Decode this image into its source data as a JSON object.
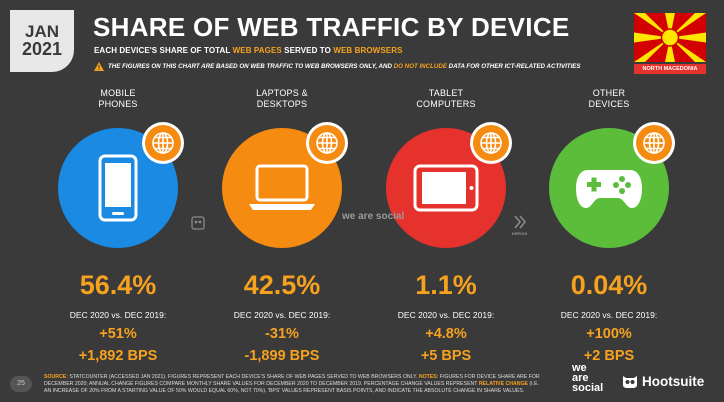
{
  "header": {
    "month": "JAN",
    "year": "2021",
    "title": "SHARE OF WEB TRAFFIC BY DEVICE",
    "subtitle_pre": "EACH DEVICE'S SHARE OF TOTAL ",
    "subtitle_hl1": "WEB PAGES",
    "subtitle_mid": " SERVED TO ",
    "subtitle_hl2": "WEB BROWSERS",
    "warning_pre": "THE FIGURES ON THIS CHART ARE BASED ON WEB TRAFFIC TO WEB BROWSERS ONLY, AND ",
    "warning_hl": "DO NOT INCLUDE",
    "warning_post": " DATA FOR OTHER ICT-RELATED ACTIVITIES",
    "country": "NORTH MACEDONIA"
  },
  "colors": {
    "accent": "#f6a21e",
    "mobile": "#1a8ae3",
    "laptop": "#f58b11",
    "tablet": "#e5322d",
    "other": "#5bbd3a",
    "background": "#3a3a3a"
  },
  "devices": [
    {
      "label_line1": "MOBILE",
      "label_line2": "PHONES",
      "icon": "mobile-phone-icon",
      "share": "56.4%",
      "comparison_label": "DEC 2020 vs. DEC 2019:",
      "relative_change": "+51%",
      "bps_change": "+1,892 BPS"
    },
    {
      "label_line1": "LAPTOPS &",
      "label_line2": "DESKTOPS",
      "icon": "laptop-icon",
      "share": "42.5%",
      "comparison_label": "DEC 2020 vs. DEC 2019:",
      "relative_change": "-31%",
      "bps_change": "-1,899 BPS"
    },
    {
      "label_line1": "TABLET",
      "label_line2": "COMPUTERS",
      "icon": "tablet-icon",
      "share": "1.1%",
      "comparison_label": "DEC 2020 vs. DEC 2019:",
      "relative_change": "+4.8%",
      "bps_change": "+5 BPS"
    },
    {
      "label_line1": "OTHER",
      "label_line2": "DEVICES",
      "icon": "gamepad-icon",
      "share": "0.04%",
      "comparison_label": "DEC 2020 vs. DEC 2019:",
      "relative_change": "+100%",
      "bps_change": "+2 BPS"
    }
  ],
  "watermarks": {
    "we_are_social": "we are social",
    "kepios": "KEPIOS"
  },
  "footer": {
    "page_number": "25",
    "source_key": "SOURCE:",
    "source_text": " STATCOUNTER (ACCESSED JAN 2021). FIGURES REPRESENT EACH DEVICE'S SHARE OF WEB PAGES SERVED TO WEB BROWSERS ONLY. ",
    "notes_key": "NOTES:",
    "notes_text": " FIGURES FOR DEVICE SHARE ARE FOR DECEMBER 2020; ANNUAL CHANGE FIGURES COMPARE MONTHLY SHARE VALUES FOR DECEMBER 2020 TO DECEMBER 2019. PERCENTAGE CHANGE VALUES REPRESENT ",
    "notes_hl": "RELATIVE CHANGE",
    "notes_text2": " (I.E. AN INCREASE OF 20% FROM A STARTING VALUE OF 50% WOULD EQUAL 60%, NOT 70%). 'BPS' VALUES REPRESENT BASIS POINTS, AND INDICATE THE ABSOLUTE CHANGE IN SHARE VALUES.",
    "we_are_social_line1": "we",
    "we_are_social_line2": "are",
    "we_are_social_line3": "social",
    "hootsuite": "Hootsuite"
  }
}
